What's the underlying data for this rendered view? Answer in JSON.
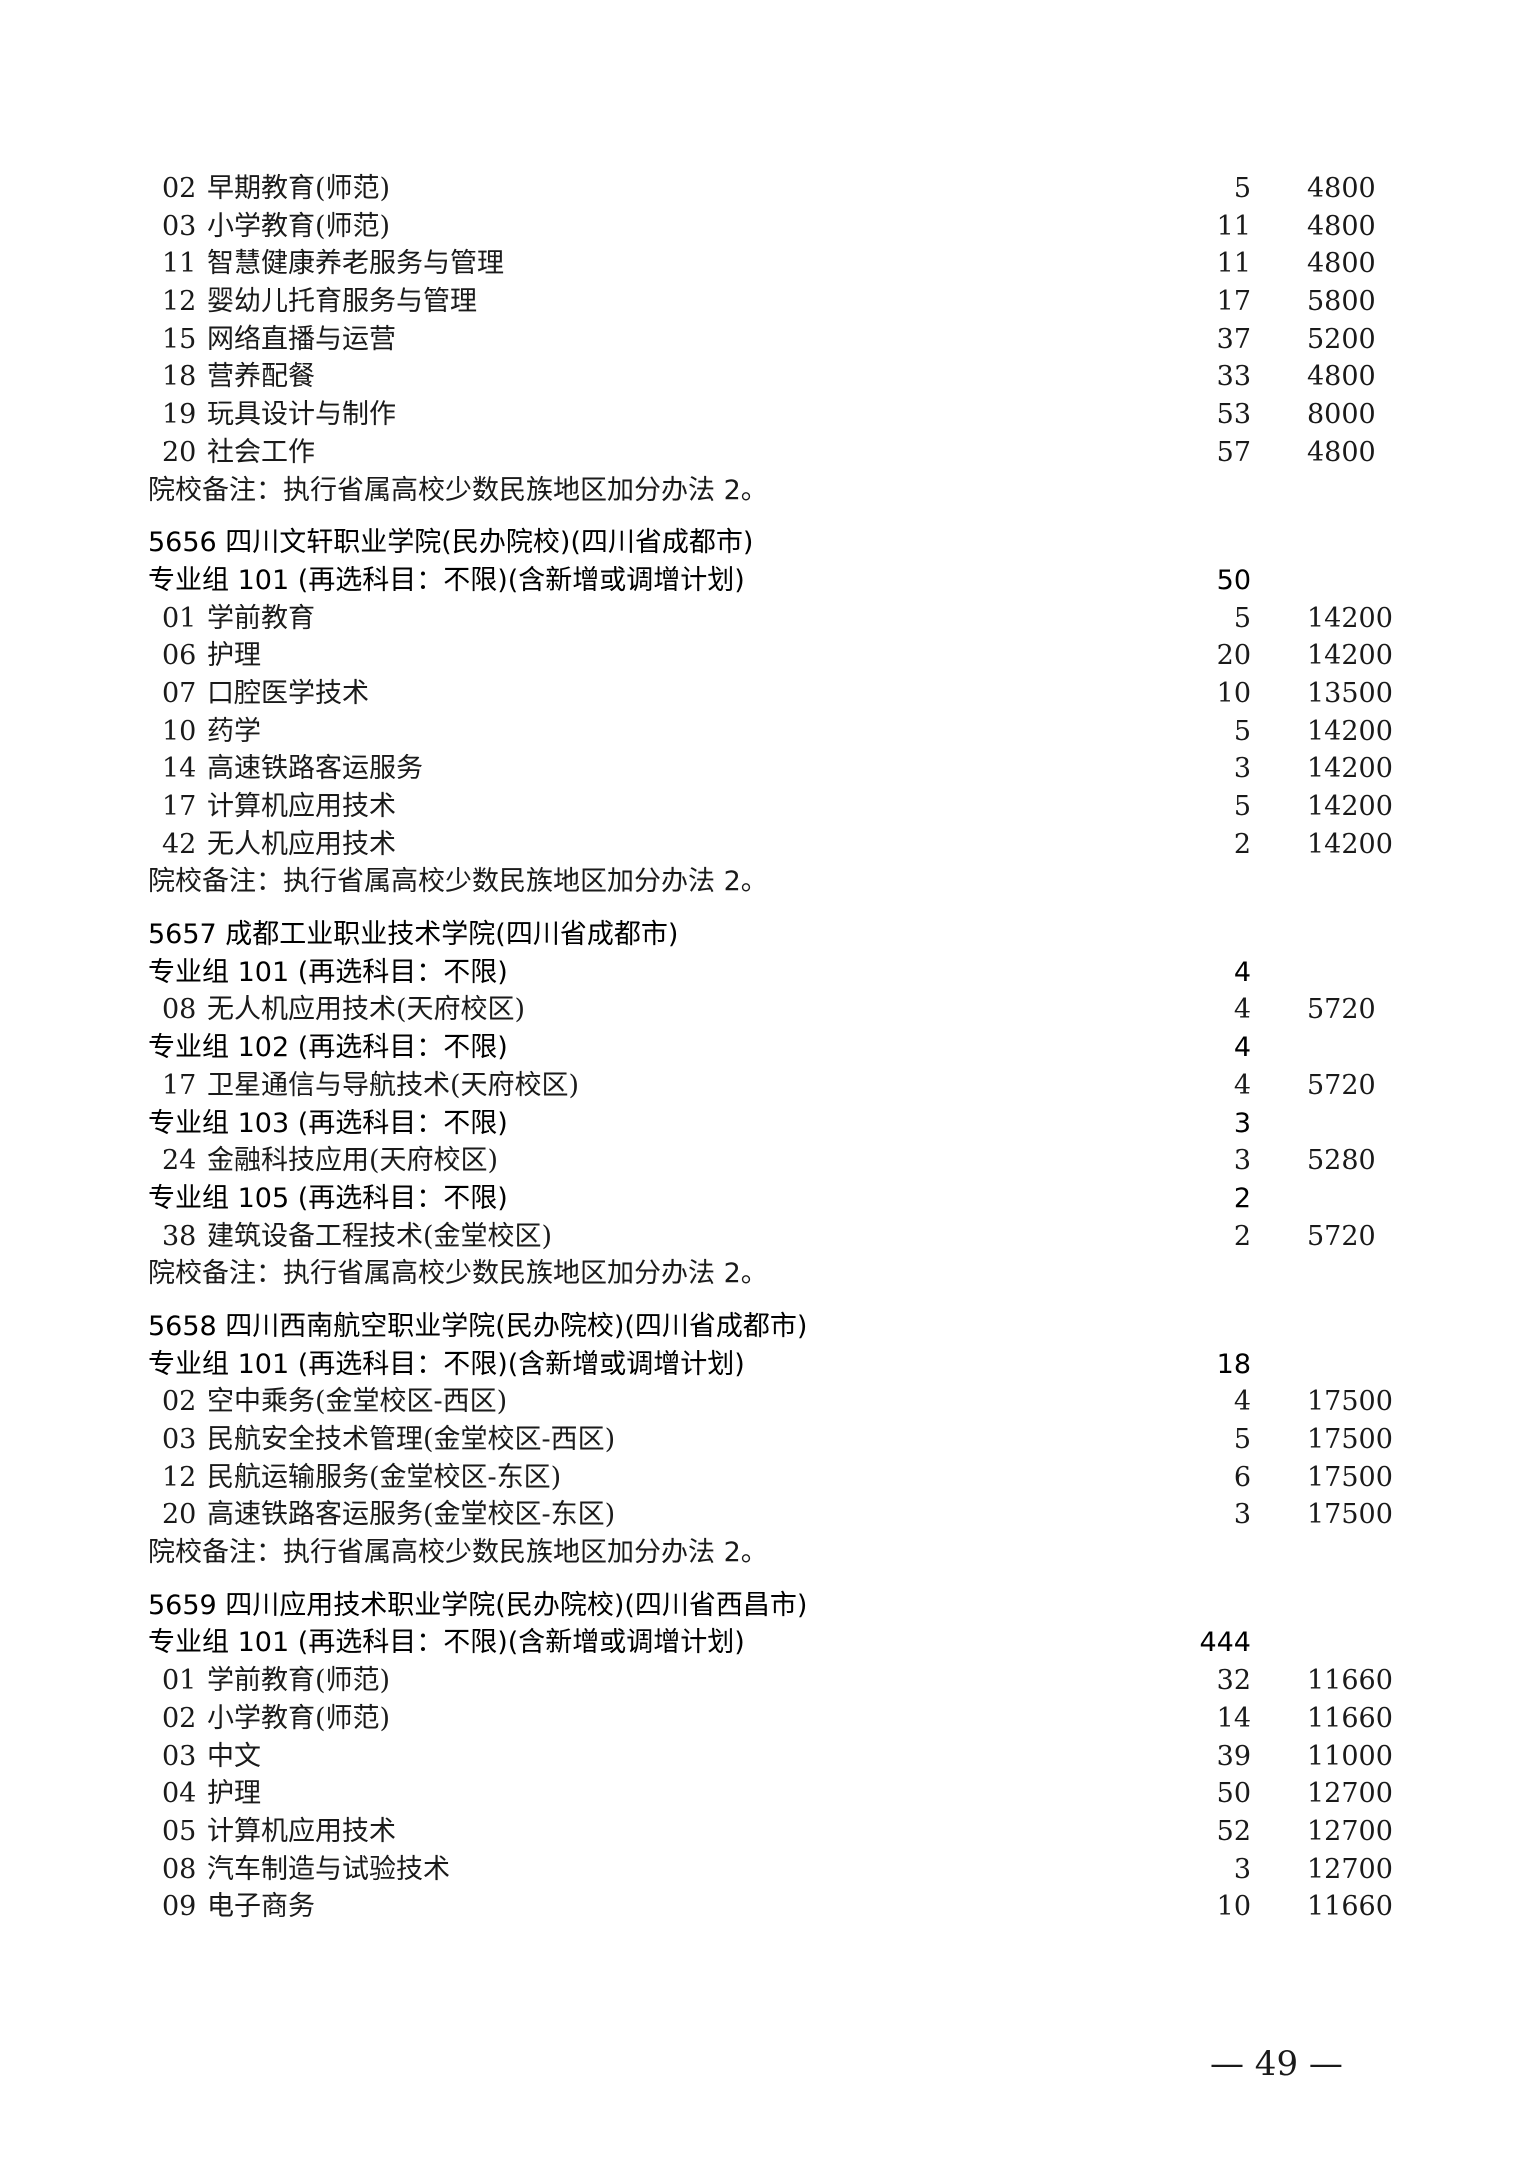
{
  "colleges": [
    {
      "header": null,
      "groups": [
        {
          "header": null,
          "count": null,
          "items": [
            {
              "code": "02",
              "name": "早期教育(师范)",
              "count": "5",
              "fee": "4800"
            },
            {
              "code": "03",
              "name": "小学教育(师范)",
              "count": "11",
              "fee": "4800"
            },
            {
              "code": "11",
              "name": "智慧健康养老服务与管理",
              "count": "11",
              "fee": "4800"
            },
            {
              "code": "12",
              "name": "婴幼儿托育服务与管理",
              "count": "17",
              "fee": "5800"
            },
            {
              "code": "15",
              "name": "网络直播与运营",
              "count": "37",
              "fee": "5200"
            },
            {
              "code": "18",
              "name": "营养配餐",
              "count": "33",
              "fee": "4800"
            },
            {
              "code": "19",
              "name": "玩具设计与制作",
              "count": "53",
              "fee": "8000"
            },
            {
              "code": "20",
              "name": "社会工作",
              "count": "57",
              "fee": "4800"
            }
          ]
        }
      ],
      "note": "院校备注：执行省属高校少数民族地区加分办法 2。"
    },
    {
      "header": "5656 四川文轩职业学院(民办院校)(四川省成都市)",
      "groups": [
        {
          "header": "专业组 101 (再选科目：不限)(含新增或调增计划)",
          "count": "50",
          "items": [
            {
              "code": "01",
              "name": "学前教育",
              "count": "5",
              "fee": "14200"
            },
            {
              "code": "06",
              "name": "护理",
              "count": "20",
              "fee": "14200"
            },
            {
              "code": "07",
              "name": "口腔医学技术",
              "count": "10",
              "fee": "13500"
            },
            {
              "code": "10",
              "name": "药学",
              "count": "5",
              "fee": "14200"
            },
            {
              "code": "14",
              "name": "高速铁路客运服务",
              "count": "3",
              "fee": "14200"
            },
            {
              "code": "17",
              "name": "计算机应用技术",
              "count": "5",
              "fee": "14200"
            },
            {
              "code": "42",
              "name": "无人机应用技术",
              "count": "2",
              "fee": "14200"
            }
          ]
        }
      ],
      "note": "院校备注：执行省属高校少数民族地区加分办法 2。"
    },
    {
      "header": "5657 成都工业职业技术学院(四川省成都市)",
      "groups": [
        {
          "header": "专业组 101 (再选科目：不限)",
          "count": "4",
          "items": [
            {
              "code": "08",
              "name": "无人机应用技术(天府校区)",
              "count": "4",
              "fee": "5720"
            }
          ]
        },
        {
          "header": "专业组 102 (再选科目：不限)",
          "count": "4",
          "items": [
            {
              "code": "17",
              "name": "卫星通信与导航技术(天府校区)",
              "count": "4",
              "fee": "5720"
            }
          ]
        },
        {
          "header": "专业组 103 (再选科目：不限)",
          "count": "3",
          "items": [
            {
              "code": "24",
              "name": "金融科技应用(天府校区)",
              "count": "3",
              "fee": "5280"
            }
          ]
        },
        {
          "header": "专业组 105 (再选科目：不限)",
          "count": "2",
          "items": [
            {
              "code": "38",
              "name": "建筑设备工程技术(金堂校区)",
              "count": "2",
              "fee": "5720"
            }
          ]
        }
      ],
      "note": "院校备注：执行省属高校少数民族地区加分办法 2。"
    },
    {
      "header": "5658 四川西南航空职业学院(民办院校)(四川省成都市)",
      "groups": [
        {
          "header": "专业组 101 (再选科目：不限)(含新增或调增计划)",
          "count": "18",
          "items": [
            {
              "code": "02",
              "name": "空中乘务(金堂校区-西区)",
              "count": "4",
              "fee": "17500"
            },
            {
              "code": "03",
              "name": "民航安全技术管理(金堂校区-西区)",
              "count": "5",
              "fee": "17500"
            },
            {
              "code": "12",
              "name": "民航运输服务(金堂校区-东区)",
              "count": "6",
              "fee": "17500"
            },
            {
              "code": "20",
              "name": "高速铁路客运服务(金堂校区-东区)",
              "count": "3",
              "fee": "17500"
            }
          ]
        }
      ],
      "note": "院校备注：执行省属高校少数民族地区加分办法 2。"
    },
    {
      "header": "5659 四川应用技术职业学院(民办院校)(四川省西昌市)",
      "groups": [
        {
          "header": "专业组 101 (再选科目：不限)(含新增或调增计划)",
          "count": "444",
          "items": [
            {
              "code": "01",
              "name": "学前教育(师范)",
              "count": "32",
              "fee": "11660"
            },
            {
              "code": "02",
              "name": "小学教育(师范)",
              "count": "14",
              "fee": "11660"
            },
            {
              "code": "03",
              "name": "中文",
              "count": "39",
              "fee": "11000"
            },
            {
              "code": "04",
              "name": "护理",
              "count": "50",
              "fee": "12700"
            },
            {
              "code": "05",
              "name": "计算机应用技术",
              "count": "52",
              "fee": "12700"
            },
            {
              "code": "08",
              "name": "汽车制造与试验技术",
              "count": "3",
              "fee": "12700"
            },
            {
              "code": "09",
              "name": "电子商务",
              "count": "10",
              "fee": "11660"
            }
          ]
        }
      ],
      "note": null
    }
  ],
  "page_number": "— 49 —"
}
